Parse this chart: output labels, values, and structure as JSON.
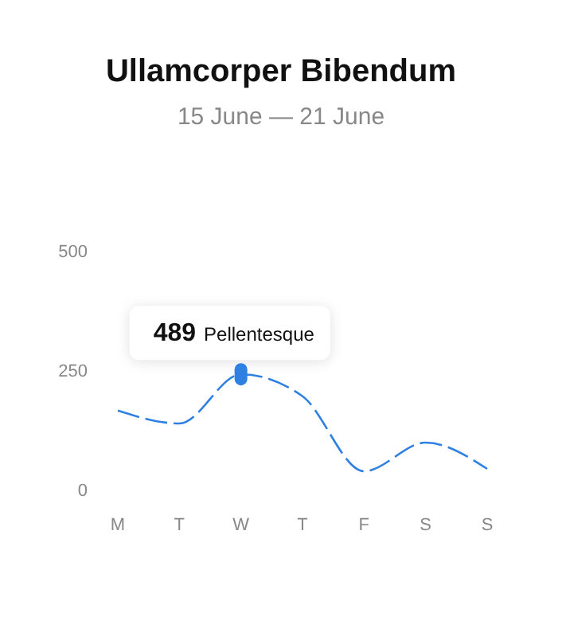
{
  "chart_data": {
    "type": "line",
    "title": "Ullamcorper Bibendum",
    "subtitle": "15 June — 21 June",
    "categories": [
      "M",
      "T",
      "W",
      "T",
      "F",
      "S",
      "S"
    ],
    "series": [
      {
        "color": "#2f80e3",
        "values": [
          167,
          140,
          243,
          197,
          40,
          100,
          45
        ]
      }
    ],
    "ylim": [
      0,
      500
    ],
    "yticks": [
      0,
      250,
      500
    ],
    "grid": false,
    "marker": "none",
    "line_style": "dashed",
    "annotations": [
      {
        "text": "489 Pellentesque",
        "x": "W",
        "y": 243
      }
    ]
  }
}
